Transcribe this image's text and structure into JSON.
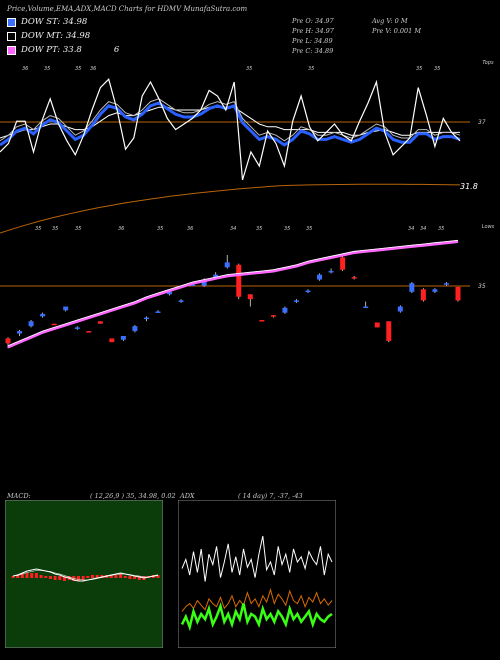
{
  "header": {
    "title": "Price,Volume,EMA,ADX,MACD Charts for HDMV MunafaSutra.com"
  },
  "legend": [
    {
      "label": "DOW ST: 34.98",
      "color": "#3a6fff"
    },
    {
      "label": "DOW MT: 34.98",
      "color": "#ffffff"
    },
    {
      "label": "DOW PT: 33.8",
      "color": "#ff66ff",
      "extra": "6"
    }
  ],
  "ohlc": {
    "open": "Pre  O: 34.97",
    "high": "Pre  H: 34.97",
    "low": "Pre  L: 34.89",
    "close": "Pre  C: 34.89",
    "avg_vol": "Avg V: 0  M",
    "vol": "Pre  V: 0.001 M"
  },
  "colors": {
    "background": "#000000",
    "grid": "#b8640a",
    "up": "#3a6fff",
    "down": "#ff2020",
    "ema_long": "#ff66ff",
    "ema_short": "#2a60ff",
    "macd_bg": "#0a3d0a",
    "adx_plus": "#39ff14",
    "adx_minus": "#d76b00"
  },
  "chart_data": [
    {
      "type": "line",
      "panel": "upper-oscillator",
      "right_label_top": "Tops",
      "right_label_mid": "37",
      "right_label_last": "31.8",
      "top_tick_labels": [
        "36",
        "35",
        "35",
        "36",
        "35",
        "35",
        "35",
        "35"
      ],
      "series": [
        {
          "values": [
            40,
            46,
            62,
            62,
            40,
            62,
            78,
            60,
            48,
            38,
            52,
            70,
            86,
            92,
            70,
            42,
            50,
            80,
            90,
            78,
            64,
            56,
            60,
            64,
            70,
            84,
            80,
            70,
            90,
            20,
            40,
            30,
            55,
            46,
            30,
            62,
            80,
            58,
            48,
            54,
            60,
            52,
            48,
            62,
            75,
            90,
            54,
            38,
            44,
            50,
            86,
            66,
            44,
            64,
            54,
            48
          ]
        },
        {
          "values": [
            48,
            52,
            58,
            60,
            56,
            62,
            66,
            64,
            58,
            52,
            55,
            62,
            70,
            76,
            74,
            68,
            66,
            70,
            76,
            78,
            74,
            70,
            68,
            68,
            70,
            74,
            76,
            74,
            76,
            64,
            58,
            52,
            54,
            52,
            48,
            52,
            58,
            56,
            52,
            52,
            54,
            52,
            50,
            52,
            56,
            60,
            58,
            52,
            50,
            50,
            56,
            56,
            52,
            54,
            54,
            52
          ]
        },
        {
          "values": [
            50,
            52,
            54,
            56,
            56,
            58,
            60,
            60,
            58,
            56,
            56,
            58,
            62,
            66,
            68,
            66,
            66,
            68,
            70,
            72,
            72,
            70,
            70,
            70,
            70,
            72,
            72,
            72,
            72,
            68,
            64,
            60,
            58,
            58,
            56,
            56,
            56,
            56,
            54,
            54,
            54,
            54,
            52,
            52,
            54,
            55,
            56,
            54,
            52,
            52,
            54,
            54,
            54,
            54,
            54,
            54
          ]
        }
      ]
    },
    {
      "type": "bar",
      "panel": "price",
      "right_label_top": "Lows",
      "right_label_mid": "35",
      "top_tick_labels": [
        "35",
        "35",
        "35",
        "36",
        "35",
        "36",
        "34",
        "35",
        "35",
        "35",
        "34",
        "34",
        "35"
      ],
      "candles": [
        {
          "o": 33.0,
          "c": 32.8,
          "h": 33.05,
          "l": 32.6
        },
        {
          "o": 33.2,
          "c": 33.3,
          "h": 33.35,
          "l": 33.1
        },
        {
          "o": 33.5,
          "c": 33.7,
          "h": 33.75,
          "l": 33.45
        },
        {
          "o": 33.9,
          "c": 34.0,
          "h": 34.05,
          "l": 33.85
        },
        {
          "o": 33.6,
          "c": 33.55,
          "h": 33.6,
          "l": 33.55
        },
        {
          "o": 34.15,
          "c": 34.3,
          "h": 34.3,
          "l": 34.1
        },
        {
          "o": 33.4,
          "c": 33.45,
          "h": 33.5,
          "l": 33.35
        },
        {
          "o": 33.3,
          "c": 33.25,
          "h": 33.3,
          "l": 33.25
        },
        {
          "o": 33.7,
          "c": 33.6,
          "h": 33.7,
          "l": 33.6
        },
        {
          "o": 33.0,
          "c": 32.85,
          "h": 33.0,
          "l": 32.85
        },
        {
          "o": 32.95,
          "c": 33.1,
          "h": 33.1,
          "l": 32.9
        },
        {
          "o": 33.3,
          "c": 33.5,
          "h": 33.55,
          "l": 33.25
        },
        {
          "o": 33.8,
          "c": 33.85,
          "h": 33.9,
          "l": 33.7
        },
        {
          "o": 34.1,
          "c": 34.1,
          "h": 34.15,
          "l": 34.05
        },
        {
          "o": 34.8,
          "c": 34.9,
          "h": 34.9,
          "l": 34.75
        },
        {
          "o": 34.5,
          "c": 34.55,
          "h": 34.6,
          "l": 34.45
        },
        {
          "o": 35.2,
          "c": 35.2,
          "h": 35.3,
          "l": 35.15
        },
        {
          "o": 35.15,
          "c": 35.4,
          "h": 35.45,
          "l": 35.1
        },
        {
          "o": 35.5,
          "c": 35.6,
          "h": 35.7,
          "l": 35.45
        },
        {
          "o": 35.9,
          "c": 36.1,
          "h": 36.4,
          "l": 35.85
        },
        {
          "o": 36.0,
          "c": 34.7,
          "h": 36.05,
          "l": 34.6
        },
        {
          "o": 34.8,
          "c": 34.6,
          "h": 34.8,
          "l": 34.3
        },
        {
          "o": 33.75,
          "c": 33.72,
          "h": 33.75,
          "l": 33.7
        },
        {
          "o": 33.95,
          "c": 33.9,
          "h": 33.95,
          "l": 33.85
        },
        {
          "o": 34.05,
          "c": 34.25,
          "h": 34.3,
          "l": 34.0
        },
        {
          "o": 34.5,
          "c": 34.55,
          "h": 34.6,
          "l": 34.45
        },
        {
          "o": 34.9,
          "c": 34.95,
          "h": 35.0,
          "l": 34.85
        },
        {
          "o": 35.4,
          "c": 35.6,
          "h": 35.65,
          "l": 35.35
        },
        {
          "o": 35.7,
          "c": 35.75,
          "h": 35.85,
          "l": 35.65
        },
        {
          "o": 36.3,
          "c": 35.8,
          "h": 36.35,
          "l": 35.75
        },
        {
          "o": 35.5,
          "c": 35.45,
          "h": 35.55,
          "l": 35.4
        },
        {
          "o": 34.3,
          "c": 34.3,
          "h": 34.5,
          "l": 34.25
        },
        {
          "o": 33.65,
          "c": 33.45,
          "h": 33.65,
          "l": 33.45
        },
        {
          "o": 33.7,
          "c": 32.9,
          "h": 33.7,
          "l": 32.85
        },
        {
          "o": 34.1,
          "c": 34.3,
          "h": 34.35,
          "l": 34.05
        },
        {
          "o": 34.9,
          "c": 35.25,
          "h": 35.3,
          "l": 34.85
        },
        {
          "o": 35.0,
          "c": 34.55,
          "h": 35.05,
          "l": 34.5
        },
        {
          "o": 34.9,
          "c": 35.0,
          "h": 35.05,
          "l": 34.85
        },
        {
          "o": 35.2,
          "c": 35.25,
          "h": 35.3,
          "l": 35.15
        },
        {
          "o": 35.1,
          "c": 34.55,
          "h": 35.1,
          "l": 34.5
        }
      ],
      "ema_short": [
        32.7,
        32.9,
        33.1,
        33.3,
        33.45,
        33.6,
        33.75,
        33.9,
        34.05,
        34.2,
        34.35,
        34.5,
        34.7,
        34.85,
        35.0,
        35.15,
        35.3,
        35.4,
        35.5,
        35.6,
        35.65,
        35.7,
        35.75,
        35.8,
        35.9,
        36.0,
        36.15,
        36.25,
        36.35,
        36.45,
        36.55,
        36.6,
        36.65,
        36.7,
        36.75,
        36.8,
        36.85,
        36.9,
        36.95,
        37.0
      ],
      "ema_long": [
        32.65,
        32.85,
        33.05,
        33.25,
        33.4,
        33.55,
        33.7,
        33.85,
        34.0,
        34.15,
        34.3,
        34.45,
        34.65,
        34.8,
        34.95,
        35.1,
        35.25,
        35.35,
        35.45,
        35.55,
        35.6,
        35.65,
        35.7,
        35.75,
        35.85,
        35.95,
        36.1,
        36.2,
        36.3,
        36.4,
        36.5,
        36.55,
        36.6,
        36.65,
        36.7,
        36.75,
        36.8,
        36.85,
        36.9,
        36.95
      ],
      "ylim": [
        32.0,
        37.5
      ]
    },
    {
      "type": "area",
      "panel": "macd",
      "title": "MACD:",
      "params": "( 12,26,9 ) 35, 34.98, 0.02",
      "series": [
        {
          "values": [
            0,
            0.1,
            0.3,
            0.5,
            0.6,
            0.7,
            0.6,
            0.5,
            0.4,
            0.2,
            0.1,
            -0.1,
            -0.2,
            -0.4,
            -0.5,
            -0.5,
            -0.4,
            -0.3,
            -0.2,
            -0.1,
            0,
            0.1,
            0.2,
            0.3,
            0.2,
            0.1,
            0,
            -0.1,
            -0.2,
            -0.1,
            0,
            0.1
          ]
        },
        {
          "values": [
            0,
            0.05,
            0.2,
            0.35,
            0.45,
            0.55,
            0.55,
            0.5,
            0.45,
            0.3,
            0.2,
            0.05,
            -0.1,
            -0.25,
            -0.35,
            -0.4,
            -0.4,
            -0.35,
            -0.25,
            -0.15,
            -0.05,
            0.05,
            0.15,
            0.2,
            0.2,
            0.15,
            0.05,
            0,
            -0.1,
            -0.1,
            -0.05,
            0.05
          ]
        }
      ]
    },
    {
      "type": "line",
      "panel": "adx",
      "title": "ADX",
      "params": "( 14  day) 7, -37, -43",
      "series": [
        {
          "values": [
            55,
            62,
            50,
            68,
            52,
            70,
            45,
            66,
            58,
            72,
            48,
            60,
            74,
            52,
            64,
            50,
            70,
            56,
            62,
            48,
            66,
            80,
            54,
            60,
            50,
            72,
            58,
            66,
            52,
            70,
            60,
            64,
            55,
            68,
            62,
            58,
            72,
            50,
            66,
            60
          ]
        },
        {
          "values": [
            12,
            18,
            10,
            22,
            14,
            20,
            16,
            24,
            12,
            18,
            26,
            14,
            20,
            12,
            22,
            16,
            28,
            14,
            20,
            18,
            12,
            24,
            16,
            20,
            14,
            22,
            18,
            12,
            24,
            16,
            20,
            14,
            18,
            22,
            12,
            20,
            16,
            14,
            18,
            20
          ]
        },
        {
          "values": [
            20,
            26,
            30,
            24,
            34,
            28,
            22,
            36,
            30,
            26,
            38,
            24,
            30,
            40,
            26,
            34,
            28,
            44,
            30,
            36,
            26,
            40,
            32,
            48,
            30,
            42,
            36,
            28,
            46,
            34,
            30,
            40,
            26,
            38,
            32,
            44,
            30,
            36,
            28,
            34
          ]
        }
      ]
    }
  ]
}
